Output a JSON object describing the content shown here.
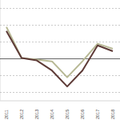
{
  "chart_data": {
    "type": "line",
    "categories": [
      "2011",
      "2012",
      "2013",
      "2014",
      "2015",
      "2016",
      "2017",
      "2018"
    ],
    "series": [
      {
        "color": "#b7b894",
        "values": [
          1.9,
          0.05,
          -0.05,
          -0.15,
          -1.1,
          -0.15,
          0.9,
          0.6
        ]
      },
      {
        "color": "#5e3b37",
        "values": [
          1.65,
          0.05,
          -0.1,
          -0.7,
          -1.65,
          -0.7,
          0.8,
          0.45
        ]
      }
    ],
    "ylim": [
      -2.5,
      3.5
    ],
    "yticks": [
      -2,
      -1,
      0,
      1,
      2,
      3
    ],
    "grid": true,
    "tick_labels": "x"
  }
}
